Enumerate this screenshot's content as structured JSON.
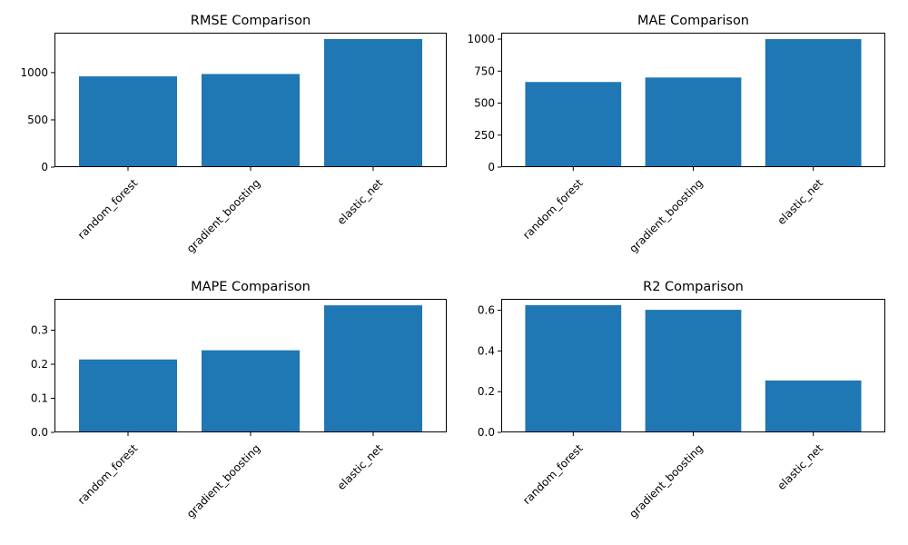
{
  "figure": {
    "bar_color": "#1f77b4",
    "axis_color": "#000000",
    "background": "#ffffff"
  },
  "chart_data": [
    {
      "type": "bar",
      "title": "RMSE Comparison",
      "categories": [
        "random_forest",
        "gradient_boosting",
        "elastic_net"
      ],
      "values": [
        960,
        985,
        1355
      ],
      "ylim": [
        0,
        1422
      ],
      "yticks": [
        0,
        500,
        1000
      ],
      "ytick_labels": [
        "0",
        "500",
        "1000"
      ],
      "xlabel": "",
      "ylabel": ""
    },
    {
      "type": "bar",
      "title": "MAE Comparison",
      "categories": [
        "random_forest",
        "gradient_boosting",
        "elastic_net"
      ],
      "values": [
        665,
        700,
        1000
      ],
      "ylim": [
        0,
        1050
      ],
      "yticks": [
        0,
        250,
        500,
        750,
        1000
      ],
      "ytick_labels": [
        "0",
        "250",
        "500",
        "750",
        "1000"
      ],
      "xlabel": "",
      "ylabel": ""
    },
    {
      "type": "bar",
      "title": "MAPE Comparison",
      "categories": [
        "random_forest",
        "gradient_boosting",
        "elastic_net"
      ],
      "values": [
        0.214,
        0.241,
        0.373
      ],
      "ylim": [
        0,
        0.392
      ],
      "yticks": [
        0,
        0.1,
        0.2,
        0.3
      ],
      "ytick_labels": [
        "0.0",
        "0.1",
        "0.2",
        "0.3"
      ],
      "xlabel": "",
      "ylabel": ""
    },
    {
      "type": "bar",
      "title": "R2 Comparison",
      "categories": [
        "random_forest",
        "gradient_boosting",
        "elastic_net"
      ],
      "values": [
        0.625,
        0.602,
        0.255
      ],
      "ylim": [
        0,
        0.656
      ],
      "yticks": [
        0,
        0.2,
        0.4,
        0.6
      ],
      "ytick_labels": [
        "0.0",
        "0.2",
        "0.4",
        "0.6"
      ],
      "xlabel": "",
      "ylabel": ""
    }
  ]
}
